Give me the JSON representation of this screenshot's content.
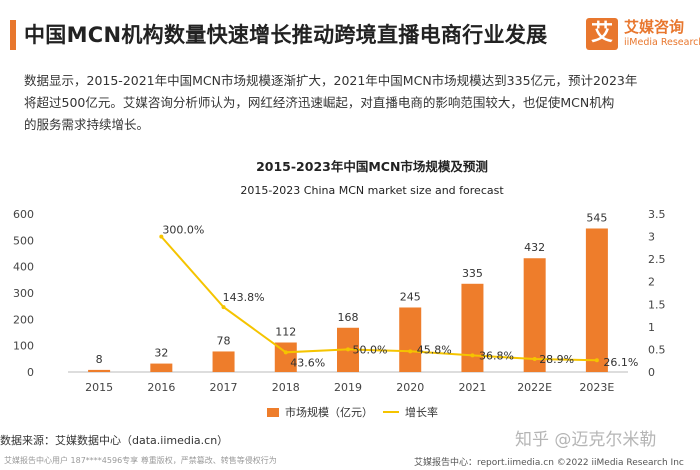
{
  "header": {
    "title": "中国MCN机构数量快速增长推动跨境直播电商行业发展",
    "brand_cn": "艾媒咨询",
    "brand_en": "iiMedia Research",
    "brand_mark": "艾"
  },
  "body": {
    "line1": "数据显示，2015-2021年中国MCN市场规模逐渐扩大，2021年中国MCN市场规模达到335亿元，预计2023年",
    "line2": "将超过500亿元。艾媒咨询分析师认为，网红经济迅速崛起，对直播电商的影响范围较大，也促使MCN机构",
    "line3": "的服务需求持续增长。"
  },
  "colors": {
    "accent": "#e8772e",
    "bar": "#ee7d2b",
    "line": "#f5c400"
  },
  "chart_data": {
    "type": "bar",
    "title": "2015-2023年中国MCN市场规模及预测",
    "subtitle": "2015-2023 China MCN market size and forecast",
    "categories": [
      "2015",
      "2016",
      "2017",
      "2018",
      "2019",
      "2020",
      "2021",
      "2022E",
      "2023E"
    ],
    "series": [
      {
        "name": "市场规模（亿元）",
        "type": "bar",
        "axis": "left",
        "values": [
          8,
          32,
          78,
          112,
          168,
          245,
          335,
          432,
          545
        ],
        "labels": [
          "8",
          "32",
          "78",
          "112",
          "168",
          "245",
          "335",
          "432",
          "545"
        ]
      },
      {
        "name": "增长率",
        "type": "line",
        "axis": "right",
        "values": [
          null,
          3.0,
          1.438,
          0.436,
          0.5,
          0.458,
          0.368,
          0.289,
          0.261
        ],
        "labels": [
          "",
          "300.0%",
          "143.8%",
          "43.6%",
          "50.0%",
          "45.8%",
          "36.8%",
          "28.9%",
          "26.1%"
        ]
      }
    ],
    "y_left": {
      "min": 0,
      "max": 600,
      "ticks": [
        "0",
        "100",
        "200",
        "300",
        "400",
        "500",
        "600"
      ]
    },
    "y_right": {
      "min": 0,
      "max": 3.5,
      "ticks": [
        "0",
        "0.5",
        "1",
        "1.5",
        "2",
        "2.5",
        "3",
        "3.5"
      ]
    },
    "grid": false,
    "legend_position": "bottom"
  },
  "footer": {
    "source": "数据来源：艾媒数据中心（data.iimedia.cn）",
    "left_note": "艾媒报告中心用户 187****4596专享 尊重版权，严禁篡改、转售等侵权行为",
    "right_note": "艾媒报告中心：report.iimedia.cn   ©2022 iiMedia Research Inc",
    "watermark": "知乎 @迈克尔米勒"
  }
}
